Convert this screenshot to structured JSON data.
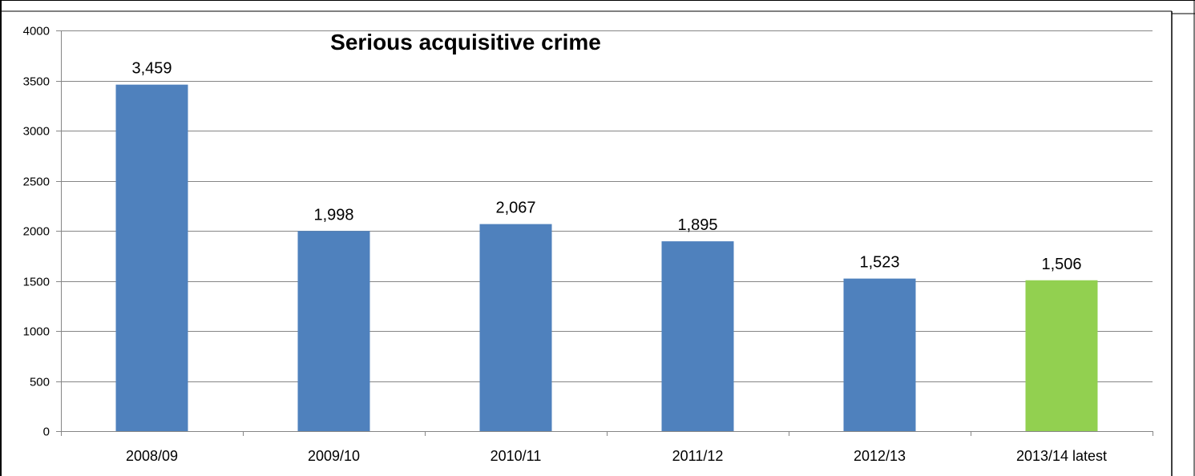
{
  "chart_data": {
    "type": "bar",
    "title": "Serious acquisitive crime",
    "xlabel": "",
    "ylabel": "",
    "categories": [
      "2008/09",
      "2009/10",
      "2010/11",
      "2011/12",
      "2012/13",
      "2013/14 latest"
    ],
    "values": [
      3459,
      1998,
      2067,
      1895,
      1523,
      1506
    ],
    "data_labels": [
      "3,459",
      "1,998",
      "2,067",
      "1,895",
      "1,523",
      "1,506"
    ],
    "ylim": [
      0,
      4000
    ],
    "yticks": [
      0,
      500,
      1000,
      1500,
      2000,
      2500,
      3000,
      3500,
      4000
    ],
    "ytick_labels": [
      "0",
      "500",
      "1000",
      "1500",
      "2000",
      "2500",
      "3000",
      "3500",
      "4000"
    ],
    "grid": true,
    "legend": "none",
    "colors": {
      "default_bar": "#4F81BD",
      "highlight_bar": "#92D050",
      "gridline": "#868686",
      "axis": "#868686"
    },
    "bar_colors": [
      "#4F81BD",
      "#4F81BD",
      "#4F81BD",
      "#4F81BD",
      "#4F81BD",
      "#92D050"
    ]
  }
}
